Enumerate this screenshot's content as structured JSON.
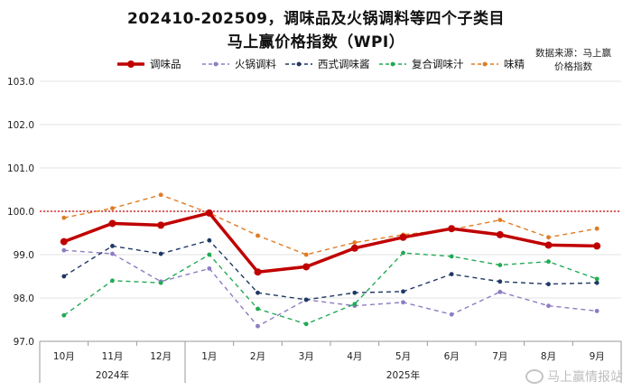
{
  "title_line1": "202410-202509，调味品及火锅调料等四个子类目",
  "title_line2": "马上赢价格指数（WPI）",
  "source_line1": "数据来源：马上赢",
  "source_line2": "价格指数",
  "watermark": "马上赢情报站",
  "colors": {
    "main": "#c00000",
    "hotpot": "#8e7cc3",
    "western": "#1f3864",
    "compound": "#22aa55",
    "msg": "#e07b22",
    "baseline": "#cc0000",
    "grid": "#e3e3e3"
  },
  "chart_data": {
    "type": "line",
    "categories": [
      "10月",
      "11月",
      "12月",
      "1月",
      "2月",
      "3月",
      "4月",
      "5月",
      "6月",
      "7月",
      "8月",
      "9月"
    ],
    "year_groups": [
      {
        "label": "2024年",
        "span": [
          0,
          2
        ]
      },
      {
        "label": "2025年",
        "span": [
          3,
          11
        ]
      }
    ],
    "ylim": [
      97.0,
      103.0
    ],
    "yticks": [
      "97.0",
      "98.0",
      "99.0",
      "100.0",
      "101.0",
      "102.0",
      "103.0"
    ],
    "reference_line": 100.0,
    "legend_position": "top",
    "series": [
      {
        "name": "调味品",
        "key": "main",
        "style": "solid-bold",
        "values": [
          99.3,
          99.72,
          99.68,
          99.96,
          98.6,
          98.72,
          99.15,
          99.4,
          99.6,
          99.46,
          99.22,
          99.2
        ]
      },
      {
        "name": "火锅调料",
        "key": "hotpot",
        "style": "dashed",
        "values": [
          99.1,
          99.02,
          98.38,
          98.68,
          97.35,
          97.96,
          97.82,
          97.9,
          97.62,
          98.14,
          97.82,
          97.7
        ]
      },
      {
        "name": "西式调味酱",
        "key": "western",
        "style": "dashed",
        "values": [
          98.5,
          99.2,
          99.02,
          99.33,
          98.12,
          97.96,
          98.12,
          98.15,
          98.55,
          98.38,
          98.32,
          98.35
        ]
      },
      {
        "name": "复合调味汁",
        "key": "compound",
        "style": "dashed",
        "values": [
          97.6,
          98.4,
          98.35,
          99.0,
          97.75,
          97.4,
          97.86,
          99.04,
          98.96,
          98.76,
          98.84,
          98.44
        ]
      },
      {
        "name": "味精",
        "key": "msg",
        "style": "dashed",
        "values": [
          99.85,
          100.07,
          100.38,
          99.96,
          99.44,
          99.0,
          99.28,
          99.46,
          99.58,
          99.8,
          99.4,
          99.6
        ]
      }
    ]
  }
}
